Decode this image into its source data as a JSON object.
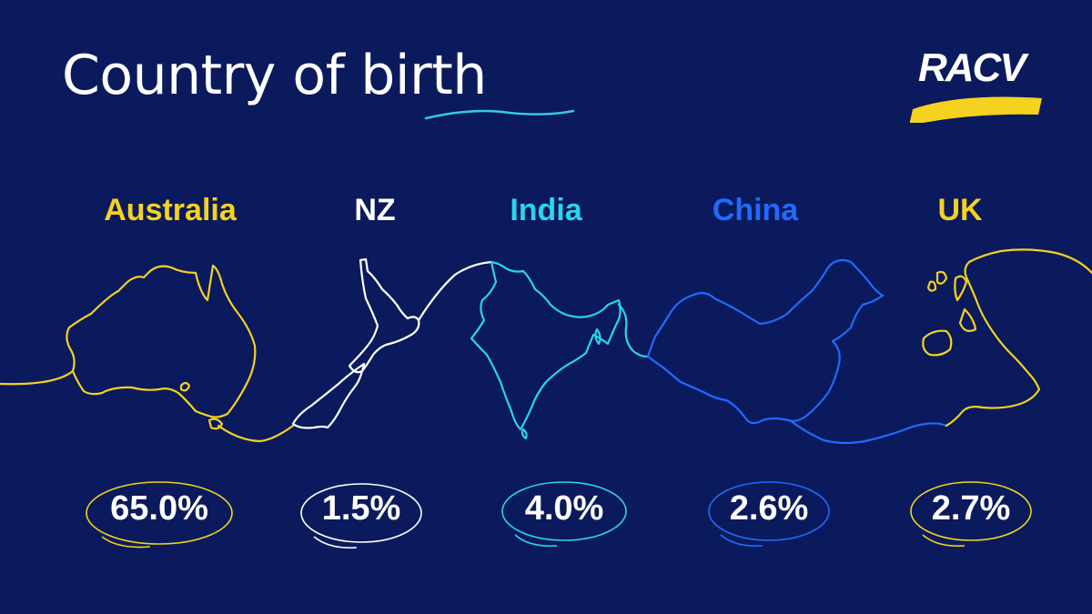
{
  "title": {
    "part1": "Country of",
    "part2": "birth"
  },
  "logo": {
    "text": "RACV"
  },
  "colors": {
    "background": "#0b1a5c",
    "yellow": "#f4d21f",
    "white": "#ffffff",
    "cyan": "#2ad4ee",
    "blue": "#1f6bff",
    "underline": "#33c8e8"
  },
  "chart_data": {
    "type": "bar",
    "title": "Country of birth",
    "unit": "%",
    "categories": [
      "Australia",
      "NZ",
      "India",
      "China",
      "UK"
    ],
    "values": [
      65.0,
      1.5,
      4.0,
      2.6,
      2.7
    ],
    "value_labels": [
      "65.0%",
      "1.5%",
      "4.0%",
      "2.6%",
      "2.7%"
    ],
    "category_colors": [
      "#f4d21f",
      "#ffffff",
      "#2ad4ee",
      "#1f6bff",
      "#f4d21f"
    ]
  }
}
